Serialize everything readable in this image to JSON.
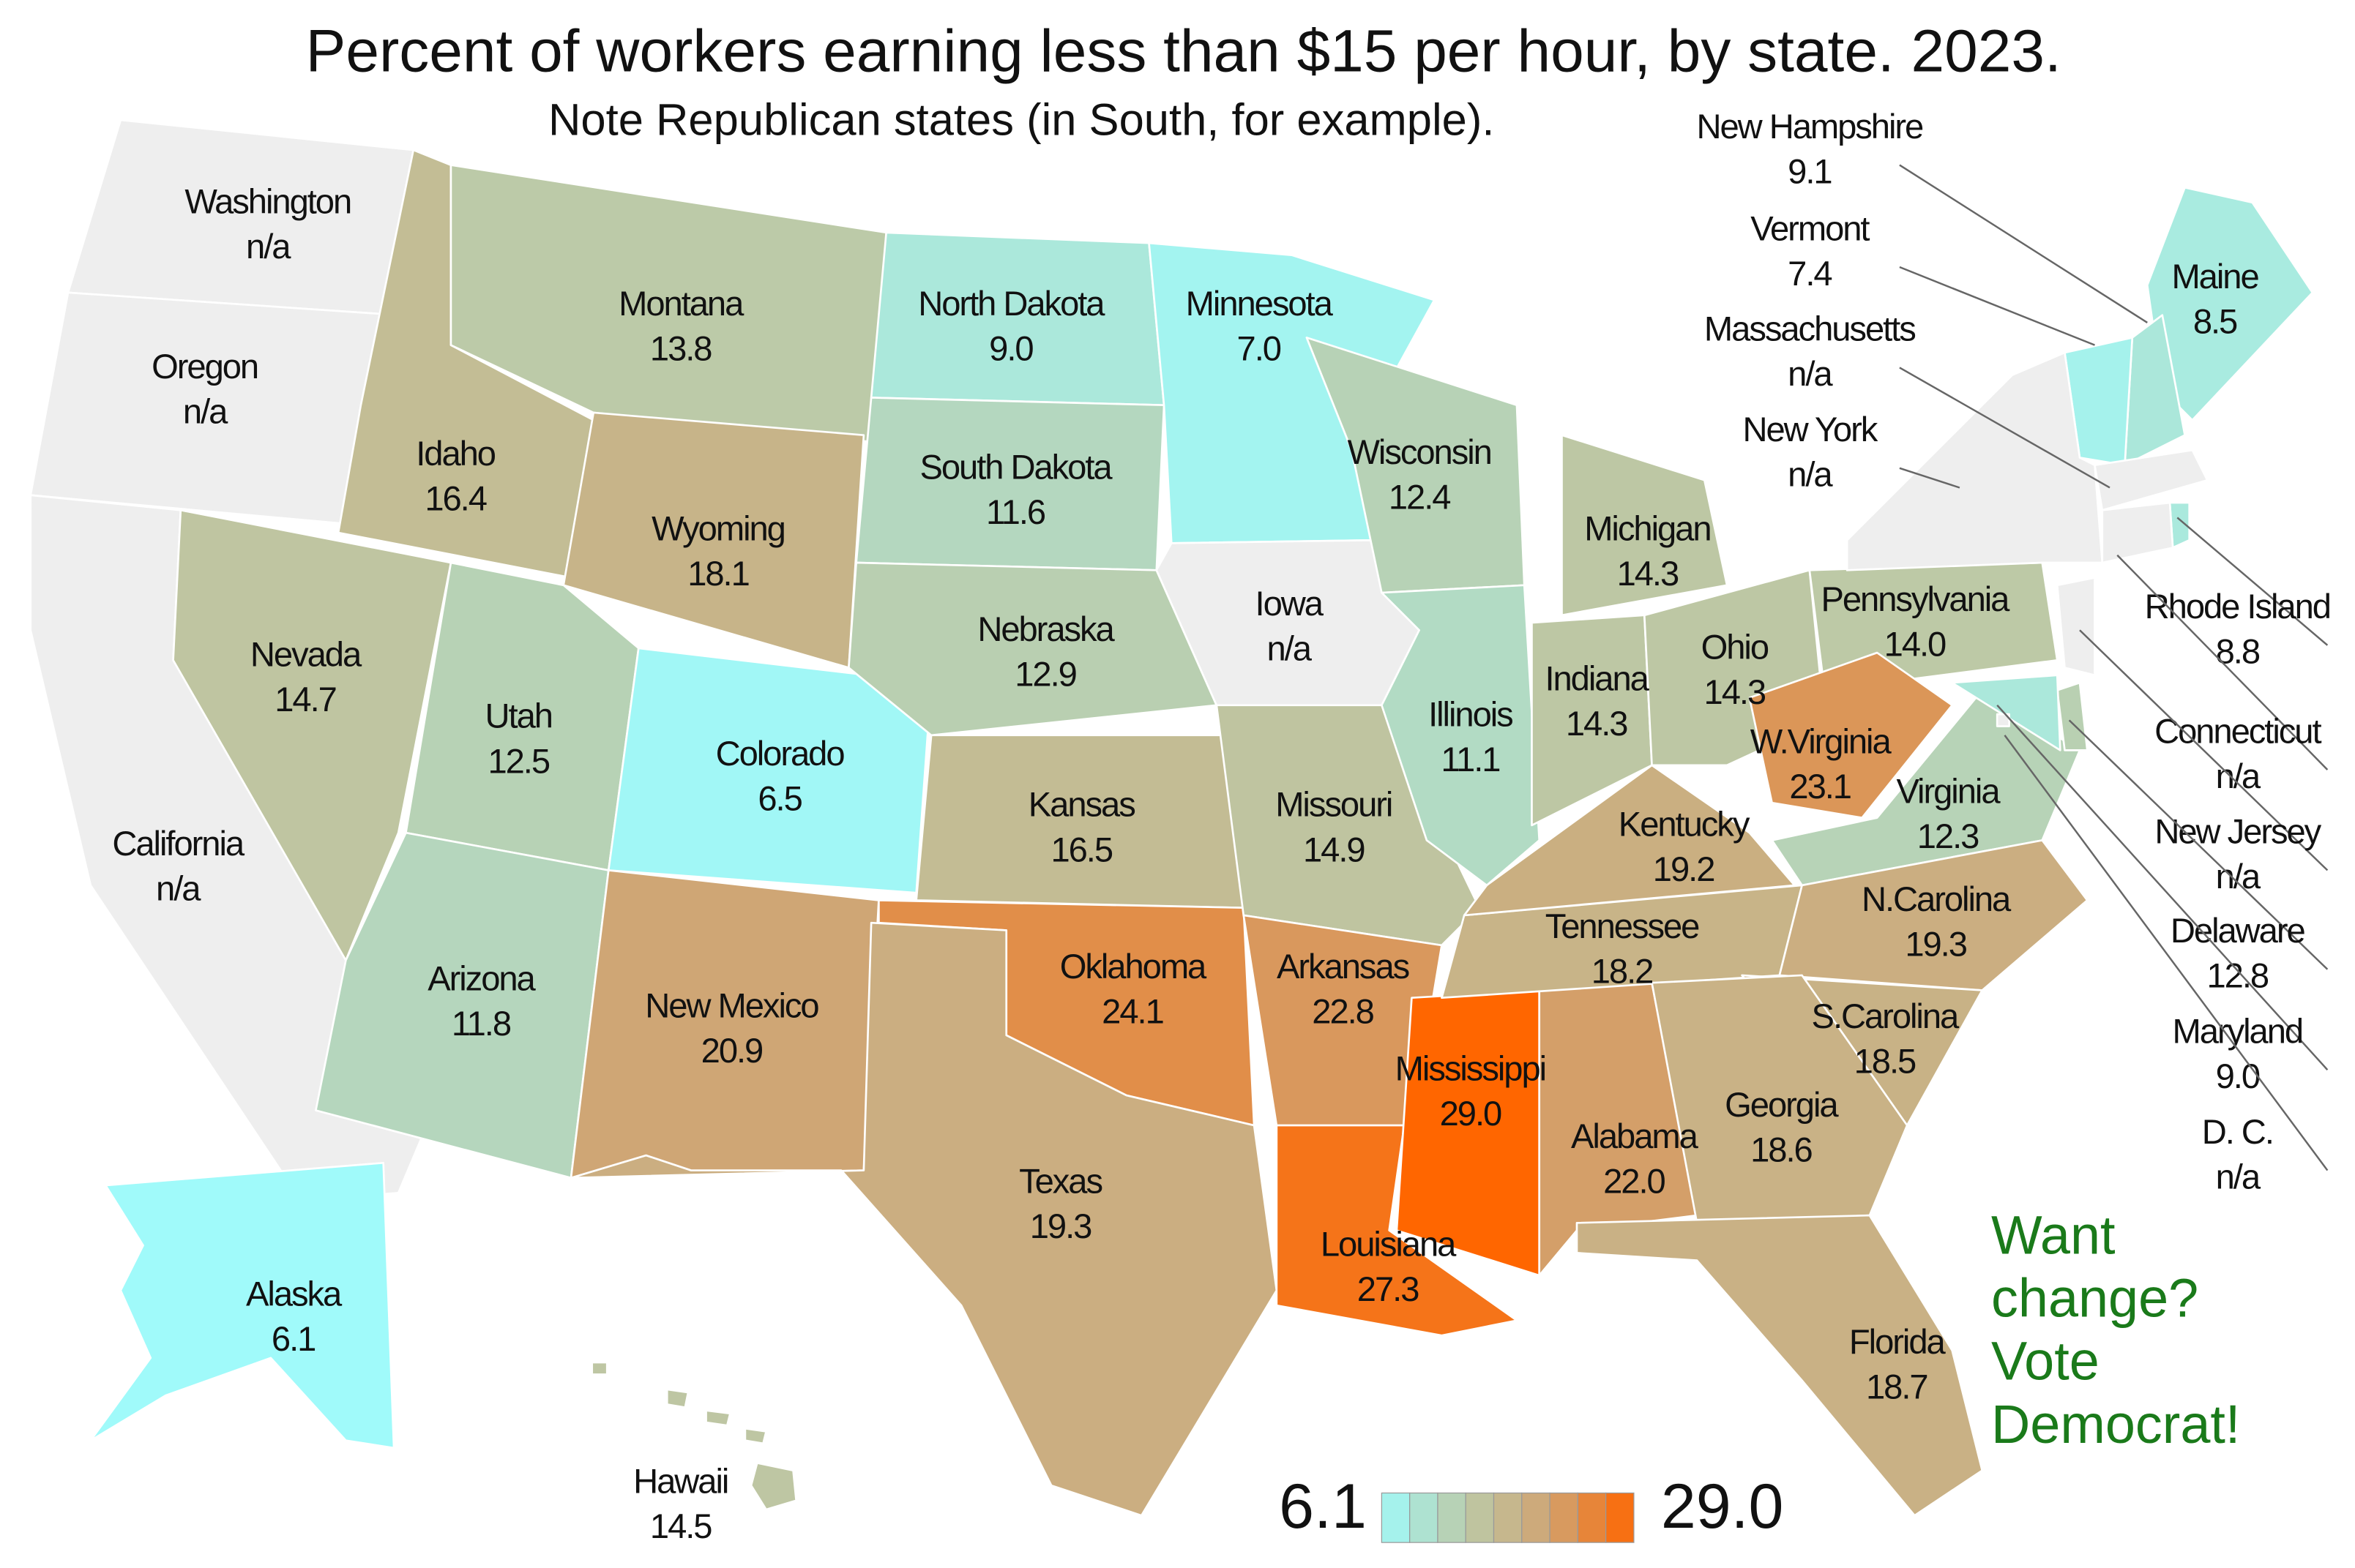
{
  "chart_data": {
    "type": "choropleth",
    "title": "Percent of workers earning less than $15 per hour, by state. 2023.",
    "subtitle": "Note Republican states (in South, for example).",
    "categories": [
      "Washington",
      "Oregon",
      "California",
      "Nevada",
      "Idaho",
      "Montana",
      "Wyoming",
      "Utah",
      "Colorado",
      "Arizona",
      "New Mexico",
      "North Dakota",
      "South Dakota",
      "Nebraska",
      "Kansas",
      "Oklahoma",
      "Texas",
      "Minnesota",
      "Iowa",
      "Missouri",
      "Arkansas",
      "Louisiana",
      "Mississippi",
      "Alabama",
      "Tennessee",
      "Kentucky",
      "Wisconsin",
      "Illinois",
      "Indiana",
      "Michigan",
      "Ohio",
      "Pennsylvania",
      "W.Virginia",
      "Virginia",
      "N.Carolina",
      "S.Carolina",
      "Georgia",
      "Florida",
      "Maine",
      "New Hampshire",
      "Vermont",
      "Massachusetts",
      "New York",
      "Rhode Island",
      "Connecticut",
      "New Jersey",
      "Delaware",
      "Maryland",
      "D. C.",
      "Alaska",
      "Hawaii"
    ],
    "values": [
      null,
      null,
      null,
      14.7,
      16.4,
      13.8,
      18.1,
      12.5,
      6.5,
      11.8,
      20.9,
      9.0,
      11.6,
      12.9,
      16.5,
      24.1,
      19.3,
      7.0,
      null,
      14.9,
      22.8,
      27.3,
      29.0,
      22.0,
      18.2,
      19.2,
      12.4,
      11.1,
      14.3,
      14.3,
      14.3,
      14.0,
      23.1,
      12.3,
      19.3,
      18.5,
      18.6,
      18.7,
      8.5,
      9.1,
      7.4,
      null,
      null,
      8.8,
      null,
      null,
      12.8,
      9.0,
      null,
      6.1,
      14.5
    ],
    "value_labels": [
      "n/a",
      "n/a",
      "n/a",
      "14.7",
      "16.4",
      "13.8",
      "18.1",
      "12.5",
      "6.5",
      "11.8",
      "20.9",
      "9.0",
      "11.6",
      "12.9",
      "16.5",
      "24.1",
      "19.3",
      "7.0",
      "n/a",
      "14.9",
      "22.8",
      "27.3",
      "29.0",
      "22.0",
      "18.2",
      "19.2",
      "12.4",
      "11.1",
      "14.3",
      "14.3",
      "14.3",
      "14.0",
      "23.1",
      "12.3",
      "19.3",
      "18.5",
      "18.6",
      "18.7",
      "8.5",
      "9.1",
      "7.4",
      "n/a",
      "n/a",
      "8.8",
      "n/a",
      "n/a",
      "12.8",
      "9.0",
      "n/a",
      "6.1",
      "14.5"
    ],
    "scale": [
      6.1,
      {
        "value": 29.0,
        "label": "29.0"
      }
    ],
    "colors": [
      "#a0fafa",
      "#bccaa8",
      "#d0a472",
      "#ff6600"
    ],
    "na_color": "#eeeeee",
    "annotation": [
      "Want",
      "change?",
      "Vote",
      "Democrat!"
    ],
    "annotation_color": "#1a7a1a"
  }
}
